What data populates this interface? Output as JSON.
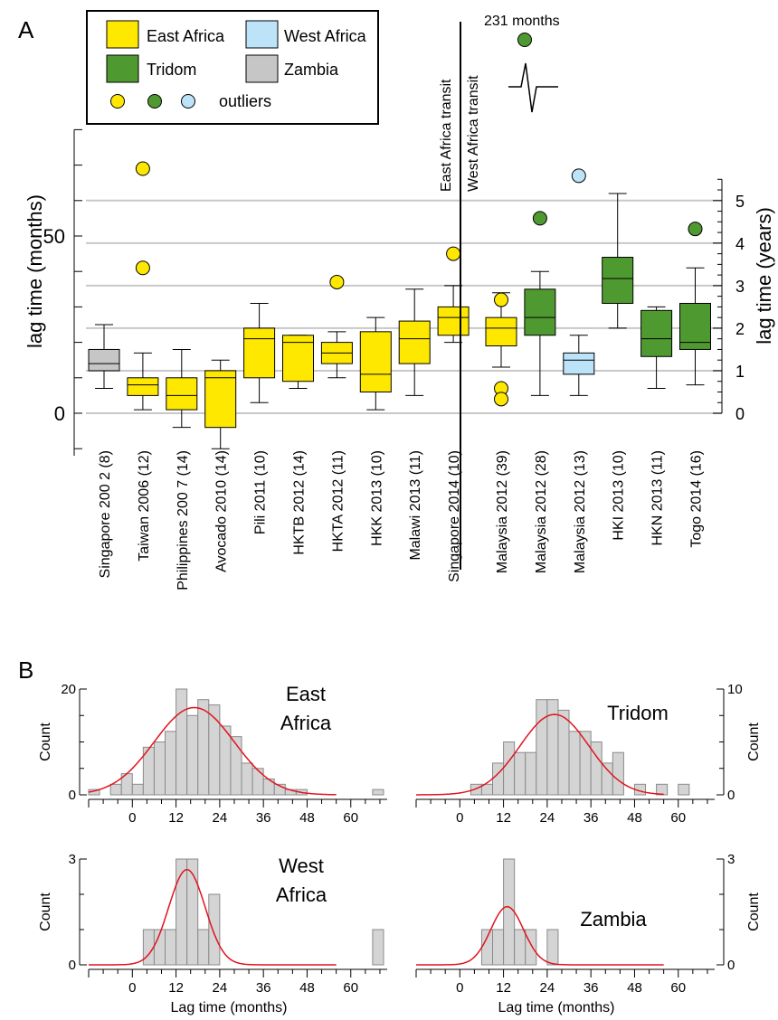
{
  "panels": {
    "a": "A",
    "b": "B"
  },
  "colors": {
    "east": "#ffe800",
    "west": "#bde3f8",
    "tridom": "#4f9a30",
    "zambia": "#c6c6c6",
    "hist_fill": "#d4d4d4",
    "curve": "#e0141e",
    "grid": "#c8c8c8"
  },
  "legend": {
    "east": "East Africa",
    "west": "West Africa",
    "tridom": "Tridom",
    "zambia": "Zambia",
    "outliers": "outliers"
  },
  "annotations": {
    "east_transit": "East Africa transit",
    "west_transit": "West Africa transit",
    "big_outlier": "231 months"
  },
  "chart_data": [
    {
      "type": "box",
      "ylabel": "lag time (months)",
      "y2label": "lag time (years)",
      "ylim": [
        -12,
        86
      ],
      "yticks": [
        0,
        50
      ],
      "y2ticks": [
        0,
        1,
        2,
        3,
        4,
        5
      ],
      "grid_years": [
        0,
        1,
        2,
        3,
        4,
        5
      ],
      "boxes": [
        {
          "label": "Singapore 200 2 (8)",
          "group": "zambia",
          "min": 7,
          "q1": 12,
          "median": 14,
          "q3": 18,
          "max": 25,
          "outliers": []
        },
        {
          "label": "Taiwan 2006 (12)",
          "group": "east",
          "min": 1,
          "q1": 5,
          "median": 8,
          "q3": 10,
          "max": 17,
          "outliers": [
            69,
            41
          ]
        },
        {
          "label": "Philippines 200 7 (14)",
          "group": "east",
          "min": -4,
          "q1": 1,
          "median": 5,
          "q3": 10,
          "max": 18,
          "outliers": []
        },
        {
          "label": "Avocado 2010 (14)",
          "group": "east",
          "min": -10,
          "q1": -4,
          "median": 10,
          "q3": 12,
          "max": 15,
          "outliers": []
        },
        {
          "label": "Pili 2011 (10)",
          "group": "east",
          "min": 3,
          "q1": 10,
          "median": 21,
          "q3": 24,
          "max": 31,
          "outliers": []
        },
        {
          "label": "HKTB 2012 (14)",
          "group": "east",
          "min": 7,
          "q1": 9,
          "median": 20,
          "q3": 22,
          "max": 22,
          "outliers": []
        },
        {
          "label": "HKTA 2012 (11)",
          "group": "east",
          "min": 10,
          "q1": 14,
          "median": 17,
          "q3": 20,
          "max": 23,
          "outliers": [
            37
          ]
        },
        {
          "label": "HKK 2013 (10)",
          "group": "east",
          "min": 1,
          "q1": 6,
          "median": 11,
          "q3": 23,
          "max": 27,
          "outliers": []
        },
        {
          "label": "Malawi 2013 (11)",
          "group": "east",
          "min": 5,
          "q1": 14,
          "median": 21,
          "q3": 26,
          "max": 35,
          "outliers": []
        },
        {
          "label": "Singapore  2014 (10)",
          "group": "east",
          "min": 20,
          "q1": 22,
          "median": 27,
          "q3": 30,
          "max": 36,
          "outliers": [
            45
          ]
        },
        {
          "label": "Malaysia  2012 (39)",
          "group": "east",
          "min": 13,
          "q1": 19,
          "median": 24,
          "q3": 27,
          "max": 34,
          "outliers": [
            32,
            7,
            4
          ]
        },
        {
          "label": "Malaysia  2012 (28)",
          "group": "tridom",
          "min": 5,
          "q1": 22,
          "median": 27,
          "q3": 35,
          "max": 40,
          "outliers": [
            55
          ]
        },
        {
          "label": "Malaysia  2012 (13)",
          "group": "west",
          "min": 5,
          "q1": 11,
          "median": 15,
          "q3": 17,
          "max": 22,
          "outliers": [
            67
          ]
        },
        {
          "label": "HKI  2013 (10)",
          "group": "tridom",
          "min": 24,
          "q1": 31,
          "median": 38,
          "q3": 44,
          "max": 62,
          "outliers": []
        },
        {
          "label": "HKN  2013 (11)",
          "group": "tridom",
          "min": 7,
          "q1": 16,
          "median": 21,
          "q3": 29,
          "max": 30,
          "outliers": []
        },
        {
          "label": "Togo 2014 (16)",
          "group": "tridom",
          "min": 8,
          "q1": 18,
          "median": 20,
          "q3": 31,
          "max": 41,
          "outliers": [
            52
          ]
        }
      ],
      "extra_outlier": {
        "group": "tridom",
        "value": 231
      }
    },
    {
      "type": "histogram",
      "title": "East Africa",
      "xlabel": "",
      "ylabel": "Count",
      "xlim": [
        -12,
        70
      ],
      "ylim": [
        0,
        20
      ],
      "yticks": [
        0,
        20
      ],
      "xticks": [
        0,
        12,
        24,
        36,
        48,
        60
      ],
      "bin_width": 3,
      "bins": [
        {
          "x": -12,
          "count": 1
        },
        {
          "x": -9,
          "count": 0
        },
        {
          "x": -6,
          "count": 2
        },
        {
          "x": -3,
          "count": 4
        },
        {
          "x": 0,
          "count": 2
        },
        {
          "x": 3,
          "count": 9
        },
        {
          "x": 6,
          "count": 10
        },
        {
          "x": 9,
          "count": 12
        },
        {
          "x": 12,
          "count": 20
        },
        {
          "x": 15,
          "count": 15
        },
        {
          "x": 18,
          "count": 18
        },
        {
          "x": 21,
          "count": 17
        },
        {
          "x": 24,
          "count": 13
        },
        {
          "x": 27,
          "count": 11
        },
        {
          "x": 30,
          "count": 6
        },
        {
          "x": 33,
          "count": 5
        },
        {
          "x": 36,
          "count": 3
        },
        {
          "x": 39,
          "count": 2
        },
        {
          "x": 42,
          "count": 1
        },
        {
          "x": 45,
          "count": 1
        },
        {
          "x": 48,
          "count": 0
        },
        {
          "x": 51,
          "count": 0
        },
        {
          "x": 54,
          "count": 0
        },
        {
          "x": 57,
          "count": 0
        },
        {
          "x": 60,
          "count": 0
        },
        {
          "x": 63,
          "count": 0
        },
        {
          "x": 66,
          "count": 1
        }
      ],
      "fit": {
        "mean": 17,
        "sd": 11,
        "peak": 16.5
      }
    },
    {
      "type": "histogram",
      "title": "Tridom",
      "xlabel": "",
      "ylabel": "Count",
      "xlim": [
        -12,
        70
      ],
      "ylim": [
        0,
        10
      ],
      "yticks": [
        0,
        10
      ],
      "xticks": [
        0,
        12,
        24,
        36,
        48,
        60
      ],
      "bin_width": 3,
      "bins": [
        {
          "x": 3,
          "count": 1
        },
        {
          "x": 6,
          "count": 1
        },
        {
          "x": 9,
          "count": 3
        },
        {
          "x": 12,
          "count": 5
        },
        {
          "x": 15,
          "count": 4
        },
        {
          "x": 18,
          "count": 4
        },
        {
          "x": 21,
          "count": 9
        },
        {
          "x": 24,
          "count": 9
        },
        {
          "x": 27,
          "count": 8
        },
        {
          "x": 30,
          "count": 6
        },
        {
          "x": 33,
          "count": 6
        },
        {
          "x": 36,
          "count": 5
        },
        {
          "x": 39,
          "count": 3
        },
        {
          "x": 42,
          "count": 4
        },
        {
          "x": 45,
          "count": 0
        },
        {
          "x": 48,
          "count": 1
        },
        {
          "x": 51,
          "count": 0
        },
        {
          "x": 54,
          "count": 1
        },
        {
          "x": 57,
          "count": 0
        },
        {
          "x": 60,
          "count": 1
        }
      ],
      "fit": {
        "mean": 26,
        "sd": 9.5,
        "peak": 7.6
      }
    },
    {
      "type": "histogram",
      "title": "West Africa",
      "xlabel": "Lag time (months)",
      "ylabel": "Count",
      "xlim": [
        -12,
        70
      ],
      "ylim": [
        0,
        3
      ],
      "yticks": [
        0,
        3
      ],
      "xticks": [
        0,
        12,
        24,
        36,
        48,
        60
      ],
      "bin_width": 3,
      "bins": [
        {
          "x": 3,
          "count": 1
        },
        {
          "x": 6,
          "count": 1
        },
        {
          "x": 9,
          "count": 1
        },
        {
          "x": 12,
          "count": 3
        },
        {
          "x": 15,
          "count": 3
        },
        {
          "x": 18,
          "count": 1
        },
        {
          "x": 21,
          "count": 2
        },
        {
          "x": 66,
          "count": 1
        }
      ],
      "fit": {
        "mean": 15,
        "sd": 5,
        "peak": 2.7
      }
    },
    {
      "type": "histogram",
      "title": "Zambia",
      "xlabel": "Lag time (months)",
      "ylabel": "Count",
      "xlim": [
        -12,
        70
      ],
      "ylim": [
        0,
        3
      ],
      "yticks": [
        0,
        3
      ],
      "xticks": [
        0,
        12,
        24,
        36,
        48,
        60
      ],
      "bin_width": 3,
      "bins": [
        {
          "x": 6,
          "count": 1
        },
        {
          "x": 9,
          "count": 1
        },
        {
          "x": 12,
          "count": 3
        },
        {
          "x": 15,
          "count": 1
        },
        {
          "x": 18,
          "count": 1
        },
        {
          "x": 24,
          "count": 1
        }
      ],
      "fit": {
        "mean": 13,
        "sd": 4.5,
        "peak": 1.65
      }
    }
  ]
}
